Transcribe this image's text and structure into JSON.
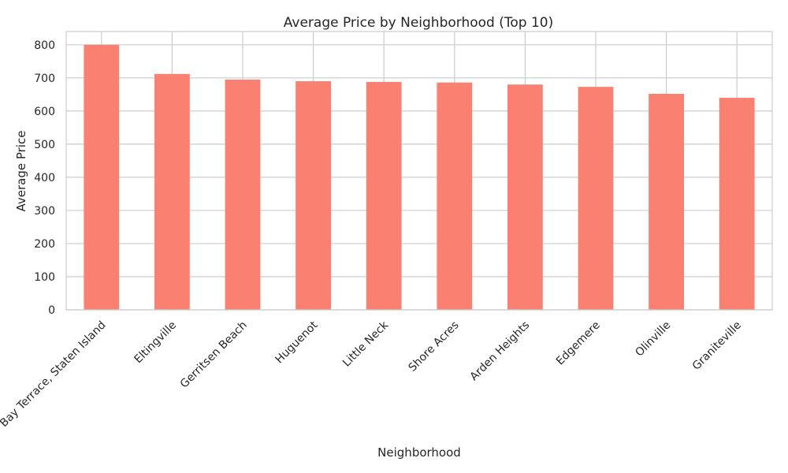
{
  "chart_data": {
    "type": "bar",
    "title": "Average Price by Neighborhood (Top 10)",
    "xlabel": "Neighborhood",
    "ylabel": "Average Price",
    "categories": [
      "Bay Terrace, Staten Island",
      "Eltingville",
      "Gerritsen Beach",
      "Huguenot",
      "Little Neck",
      "Shore Acres",
      "Arden Heights",
      "Edgemere",
      "Olinville",
      "Graniteville"
    ],
    "values": [
      800,
      712,
      695,
      690,
      688,
      686,
      680,
      673,
      652,
      640
    ],
    "ylim": [
      0,
      840
    ],
    "yticks": [
      0,
      100,
      200,
      300,
      400,
      500,
      600,
      700,
      800
    ],
    "grid": true,
    "bar_color": "#fa8072"
  }
}
